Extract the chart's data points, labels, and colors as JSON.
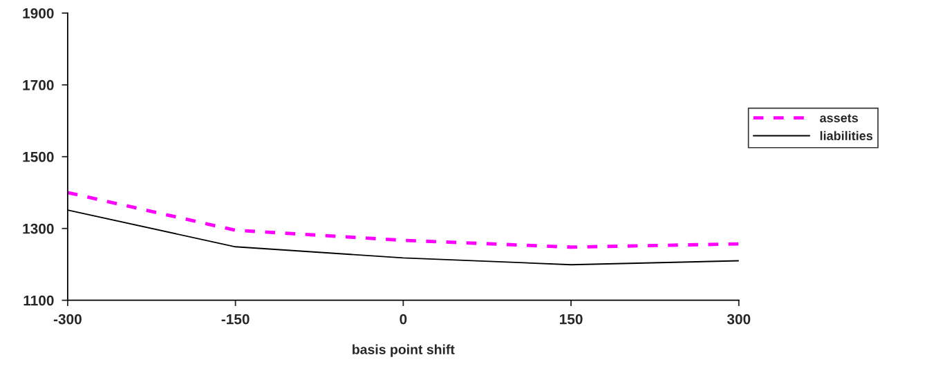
{
  "chart_data": {
    "type": "line",
    "xlabel": "basis point shift",
    "x": [
      -300,
      -150,
      0,
      150,
      300
    ],
    "xlim": [
      -300,
      300
    ],
    "xticks": [
      -300,
      -150,
      0,
      150,
      300
    ],
    "ylim": [
      1100,
      1900
    ],
    "yticks": [
      1100,
      1300,
      1500,
      1700,
      1900
    ],
    "grid": false,
    "legend": "right",
    "marker": "none",
    "series": [
      {
        "name": "assets",
        "color": "#ff00ff",
        "line_style": "dashed",
        "values": [
          1400,
          1295,
          1267,
          1248,
          1257
        ]
      },
      {
        "name": "liabilities",
        "color": "#000000",
        "line_style": "solid",
        "values": [
          1351,
          1249,
          1218,
          1199,
          1210
        ]
      }
    ]
  }
}
